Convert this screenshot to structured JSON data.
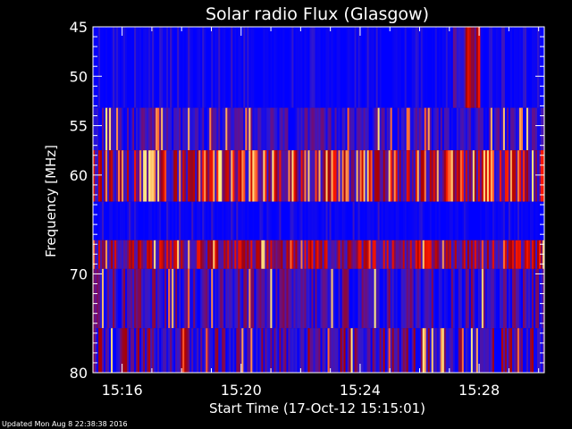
{
  "chart_data": {
    "type": "heatmap",
    "title": "Solar radio Flux (Glasgow)",
    "xlabel": "Start Time (17-Oct-12 15:15:01)",
    "ylabel": "Frequency [MHz]",
    "x_unit": "minutes after 15:15:01",
    "xlim": [
      0,
      15.17
    ],
    "ylim": [
      45,
      80
    ],
    "y_inverted": true,
    "x_ticks": [
      {
        "label": "15:16",
        "value": 0.98
      },
      {
        "label": "15:20",
        "value": 4.98
      },
      {
        "label": "15:24",
        "value": 8.98
      },
      {
        "label": "15:28",
        "value": 12.98
      }
    ],
    "y_ticks": [
      45,
      50,
      55,
      60,
      70,
      80
    ],
    "colormap": [
      "#0000ff",
      "#3318cc",
      "#661088",
      "#aa0000",
      "#ff1a00",
      "#ffee88"
    ],
    "bands": [
      {
        "f_start": 45,
        "f_end": 53.2,
        "intensity": 0.02,
        "variability": 0.05,
        "note": "low signal"
      },
      {
        "f_start": 53.2,
        "f_end": 57.5,
        "intensity": 0.18,
        "variability": 0.25
      },
      {
        "f_start": 57.5,
        "f_end": 62.7,
        "intensity": 0.55,
        "variability": 0.45
      },
      {
        "f_start": 62.7,
        "f_end": 66.6,
        "intensity": 0.02,
        "variability": 0.05,
        "note": "low signal"
      },
      {
        "f_start": 66.6,
        "f_end": 69.5,
        "intensity": 0.48,
        "variability": 0.3
      },
      {
        "f_start": 69.5,
        "f_end": 75.5,
        "intensity": 0.22,
        "variability": 0.3
      },
      {
        "f_start": 75.5,
        "f_end": 80,
        "intensity": 0.28,
        "variability": 0.35
      }
    ],
    "features": [
      {
        "t_start": 12.1,
        "t_end": 13.0,
        "f_start": 45,
        "f_end": 53.2,
        "intensity": 0.45,
        "description": "enhanced emission patch"
      }
    ]
  },
  "footer": {
    "updated": "Updated Mon Aug  8 22:38:38 2016"
  },
  "colors": {
    "background": "#000000",
    "axis": "#ffffff"
  }
}
